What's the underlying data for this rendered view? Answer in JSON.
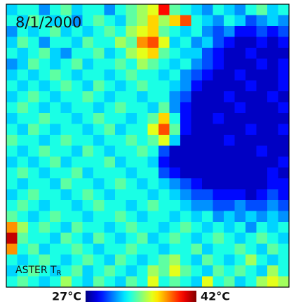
{
  "chart_data": {
    "type": "heatmap",
    "title": "8/1/2000",
    "label": "ASTER T",
    "label_subscript": "R",
    "colormap": "jet",
    "zlim": [
      27,
      42
    ],
    "zticks": [
      {
        "value": 27,
        "label": "27°C"
      },
      {
        "value": 42,
        "label": "42°C"
      }
    ],
    "z": [
      [
        32,
        33,
        33,
        31,
        33,
        34,
        32,
        33,
        33,
        31,
        33,
        34,
        35,
        36,
        40,
        34,
        33,
        32,
        31,
        33,
        32,
        31,
        33,
        34,
        32,
        33
      ],
      [
        33,
        32,
        34,
        33,
        32,
        33,
        31,
        33,
        34,
        33,
        32,
        34,
        35,
        37,
        35,
        37,
        39,
        33,
        32,
        31,
        33,
        32,
        30,
        31,
        32,
        31
      ],
      [
        31,
        33,
        32,
        33,
        34,
        32,
        33,
        32,
        33,
        34,
        33,
        35,
        36,
        37,
        34,
        33,
        32,
        33,
        31,
        30,
        31,
        29,
        29,
        30,
        29,
        30
      ],
      [
        32,
        34,
        33,
        31,
        33,
        33,
        32,
        34,
        33,
        33,
        35,
        34,
        38,
        39,
        36,
        32,
        33,
        31,
        32,
        30,
        29,
        28,
        28,
        29,
        28,
        29
      ],
      [
        33,
        32,
        33,
        34,
        32,
        31,
        33,
        33,
        34,
        32,
        33,
        35,
        36,
        37,
        34,
        33,
        32,
        32,
        30,
        29,
        28,
        28,
        29,
        28,
        28,
        28
      ],
      [
        31,
        32,
        34,
        33,
        32,
        33,
        34,
        32,
        33,
        33,
        34,
        33,
        35,
        34,
        33,
        32,
        33,
        31,
        30,
        29,
        28,
        28,
        28,
        29,
        28,
        29
      ],
      [
        32,
        33,
        32,
        33,
        34,
        33,
        32,
        33,
        33,
        32,
        33,
        34,
        33,
        33,
        32,
        33,
        31,
        30,
        29,
        28,
        28,
        29,
        28,
        28,
        28,
        29
      ],
      [
        33,
        32,
        33,
        32,
        33,
        34,
        33,
        32,
        34,
        33,
        32,
        33,
        34,
        33,
        33,
        32,
        31,
        29,
        28,
        28,
        28,
        28,
        29,
        28,
        28,
        29
      ],
      [
        32,
        33,
        34,
        33,
        32,
        33,
        33,
        34,
        33,
        32,
        33,
        33,
        32,
        33,
        33,
        31,
        30,
        28,
        28,
        28,
        29,
        28,
        28,
        28,
        29,
        28
      ],
      [
        33,
        34,
        33,
        32,
        33,
        32,
        33,
        33,
        32,
        33,
        34,
        33,
        33,
        32,
        34,
        31,
        29,
        28,
        28,
        28,
        28,
        29,
        28,
        28,
        28,
        29
      ],
      [
        32,
        33,
        33,
        34,
        33,
        33,
        32,
        33,
        34,
        33,
        33,
        32,
        33,
        34,
        37,
        33,
        29,
        28,
        28,
        29,
        28,
        28,
        28,
        28,
        28,
        28
      ],
      [
        33,
        32,
        34,
        33,
        32,
        33,
        33,
        32,
        33,
        34,
        32,
        33,
        33,
        36,
        39,
        34,
        29,
        28,
        28,
        28,
        28,
        28,
        29,
        28,
        28,
        29
      ],
      [
        34,
        33,
        33,
        32,
        33,
        34,
        33,
        33,
        32,
        33,
        33,
        34,
        33,
        34,
        36,
        32,
        28,
        28,
        28,
        28,
        29,
        28,
        28,
        28,
        28,
        28
      ],
      [
        33,
        32,
        33,
        34,
        33,
        33,
        32,
        34,
        33,
        32,
        33,
        33,
        34,
        33,
        30,
        28,
        28,
        28,
        28,
        28,
        28,
        28,
        28,
        29,
        28,
        28
      ],
      [
        32,
        33,
        32,
        33,
        34,
        32,
        33,
        33,
        33,
        34,
        32,
        33,
        33,
        32,
        29,
        28,
        28,
        28,
        28,
        28,
        28,
        28,
        28,
        28,
        28,
        29
      ],
      [
        33,
        34,
        33,
        32,
        33,
        33,
        34,
        32,
        33,
        33,
        33,
        32,
        33,
        33,
        30,
        29,
        28,
        28,
        28,
        28,
        28,
        28,
        28,
        28,
        29,
        28
      ],
      [
        33,
        32,
        33,
        33,
        32,
        34,
        33,
        33,
        32,
        33,
        34,
        33,
        32,
        33,
        32,
        31,
        30,
        29,
        28,
        28,
        28,
        28,
        28,
        28,
        29,
        29
      ],
      [
        32,
        33,
        34,
        33,
        33,
        32,
        33,
        34,
        33,
        32,
        33,
        33,
        33,
        32,
        33,
        32,
        31,
        30,
        30,
        29,
        29,
        29,
        28,
        29,
        30,
        29
      ],
      [
        33,
        34,
        33,
        32,
        33,
        33,
        32,
        33,
        34,
        33,
        33,
        32,
        33,
        34,
        33,
        33,
        32,
        31,
        31,
        30,
        30,
        31,
        30,
        30,
        31,
        30
      ],
      [
        34,
        33,
        32,
        33,
        34,
        33,
        33,
        32,
        33,
        33,
        34,
        33,
        32,
        33,
        33,
        32,
        33,
        32,
        33,
        31,
        32,
        31,
        32,
        31,
        32,
        31
      ],
      [
        38,
        35,
        33,
        34,
        33,
        32,
        34,
        33,
        33,
        32,
        33,
        34,
        33,
        33,
        32,
        33,
        34,
        33,
        32,
        33,
        32,
        33,
        31,
        33,
        32,
        33
      ],
      [
        41,
        34,
        33,
        33,
        32,
        34,
        33,
        32,
        34,
        33,
        32,
        33,
        34,
        32,
        33,
        34,
        33,
        32,
        33,
        34,
        33,
        32,
        33,
        34,
        33,
        32
      ],
      [
        38,
        33,
        34,
        32,
        33,
        33,
        34,
        33,
        32,
        33,
        33,
        34,
        33,
        33,
        32,
        33,
        33,
        34,
        32,
        33,
        33,
        34,
        33,
        32,
        34,
        33
      ],
      [
        33,
        32,
        33,
        34,
        33,
        32,
        33,
        34,
        33,
        32,
        34,
        33,
        32,
        33,
        34,
        35,
        33,
        32,
        34,
        33,
        32,
        33,
        35,
        33,
        32,
        33
      ],
      [
        32,
        33,
        34,
        33,
        32,
        33,
        34,
        32,
        33,
        34,
        33,
        32,
        33,
        35,
        34,
        36,
        34,
        33,
        32,
        34,
        33,
        34,
        33,
        32,
        35,
        33
      ],
      [
        33,
        34,
        33,
        32,
        33,
        35,
        33,
        32,
        34,
        33,
        32,
        34,
        33,
        36,
        33,
        34,
        33,
        32,
        36,
        33,
        34,
        32,
        33,
        35,
        36,
        35
      ]
    ]
  }
}
